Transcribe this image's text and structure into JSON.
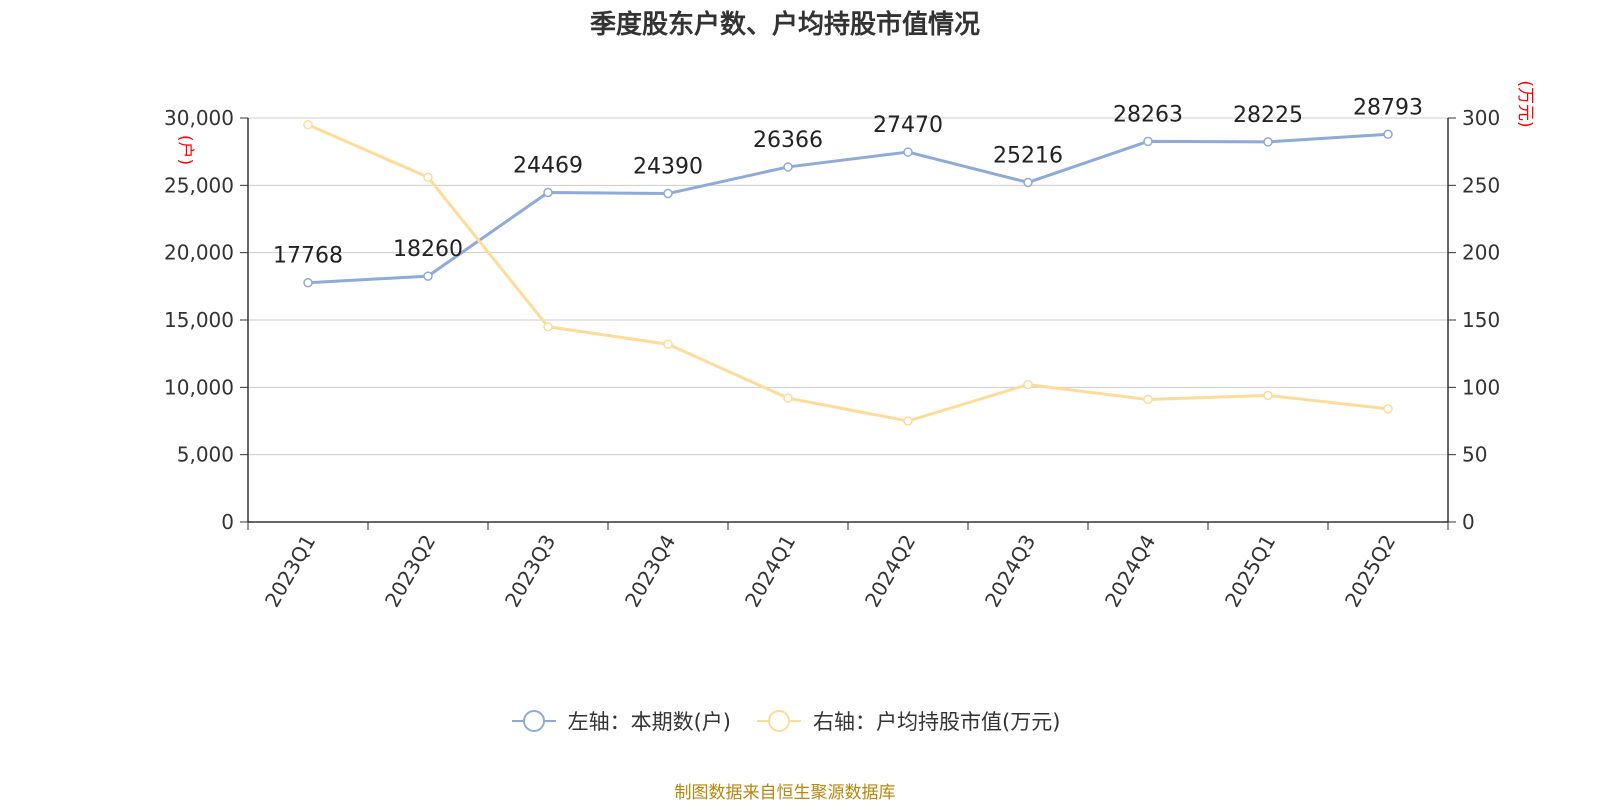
{
  "title": "季度股东户数、户均持股市值情况",
  "source": "制图数据来自恒生聚源数据库",
  "colors": {
    "left_series": "#8eaad8",
    "right_series": "#fddc9a",
    "unit": "#ff0000",
    "grid": "#cccccc",
    "axis": "#333333"
  },
  "chart_data": {
    "type": "line",
    "title": "季度股东户数、户均持股市值情况",
    "categories": [
      "2023Q1",
      "2023Q2",
      "2023Q3",
      "2023Q4",
      "2024Q1",
      "2024Q2",
      "2024Q3",
      "2024Q4",
      "2025Q1",
      "2025Q2"
    ],
    "left_axis": {
      "unit": "(户)",
      "ylim": [
        0,
        30000
      ],
      "ticks": [
        "0",
        "5,000",
        "10,000",
        "15,000",
        "20,000",
        "25,000",
        "30,000"
      ]
    },
    "right_axis": {
      "unit": "(万元)",
      "ylim": [
        0,
        300
      ],
      "ticks": [
        "0",
        "50",
        "100",
        "150",
        "200",
        "250",
        "300"
      ]
    },
    "series": [
      {
        "name": "左轴：本期数(户)",
        "axis": "left",
        "values": [
          17768,
          18260,
          24469,
          24390,
          26366,
          27470,
          25216,
          28263,
          28225,
          28793
        ],
        "labels": [
          "17768",
          "18260",
          "24469",
          "24390",
          "26366",
          "27470",
          "25216",
          "28263",
          "28225",
          "28793"
        ]
      },
      {
        "name": "右轴：户均持股市值(万元)",
        "axis": "right",
        "values": [
          295,
          256,
          145,
          132,
          92,
          75,
          102,
          91,
          94,
          84
        ]
      }
    ],
    "grid": true,
    "legend_position": "bottom"
  }
}
